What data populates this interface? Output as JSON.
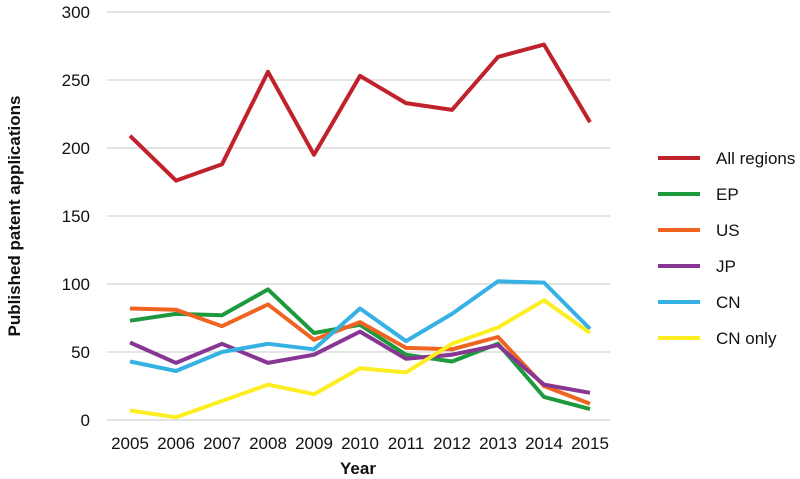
{
  "chart_data": {
    "type": "line",
    "xlabel": "Year",
    "ylabel": "Published patent applications",
    "x": [
      2005,
      2006,
      2007,
      2008,
      2009,
      2010,
      2011,
      2012,
      2013,
      2014,
      2015
    ],
    "ylim": [
      0,
      300
    ],
    "yticks": [
      0,
      50,
      100,
      150,
      200,
      250,
      300
    ],
    "grid": true,
    "legend_position": "right",
    "series": [
      {
        "name": "All regions",
        "color": "#c0222c",
        "values": [
          209,
          176,
          188,
          256,
          195,
          253,
          233,
          228,
          267,
          276,
          219
        ]
      },
      {
        "name": "EP",
        "color": "#1e9a3e",
        "values": [
          73,
          78,
          77,
          96,
          64,
          70,
          48,
          43,
          56,
          17,
          8
        ]
      },
      {
        "name": "US",
        "color": "#ee6420",
        "values": [
          82,
          81,
          69,
          85,
          59,
          72,
          53,
          52,
          61,
          25,
          12
        ]
      },
      {
        "name": "JP",
        "color": "#873694",
        "values": [
          57,
          42,
          56,
          42,
          48,
          65,
          45,
          48,
          55,
          26,
          20
        ]
      },
      {
        "name": "CN",
        "color": "#36b1e4",
        "values": [
          43,
          36,
          50,
          56,
          52,
          82,
          58,
          78,
          102,
          101,
          67
        ]
      },
      {
        "name": "CN only",
        "color": "#fcee21",
        "values": [
          7,
          2,
          14,
          26,
          19,
          38,
          35,
          56,
          68,
          88,
          64
        ]
      }
    ]
  }
}
